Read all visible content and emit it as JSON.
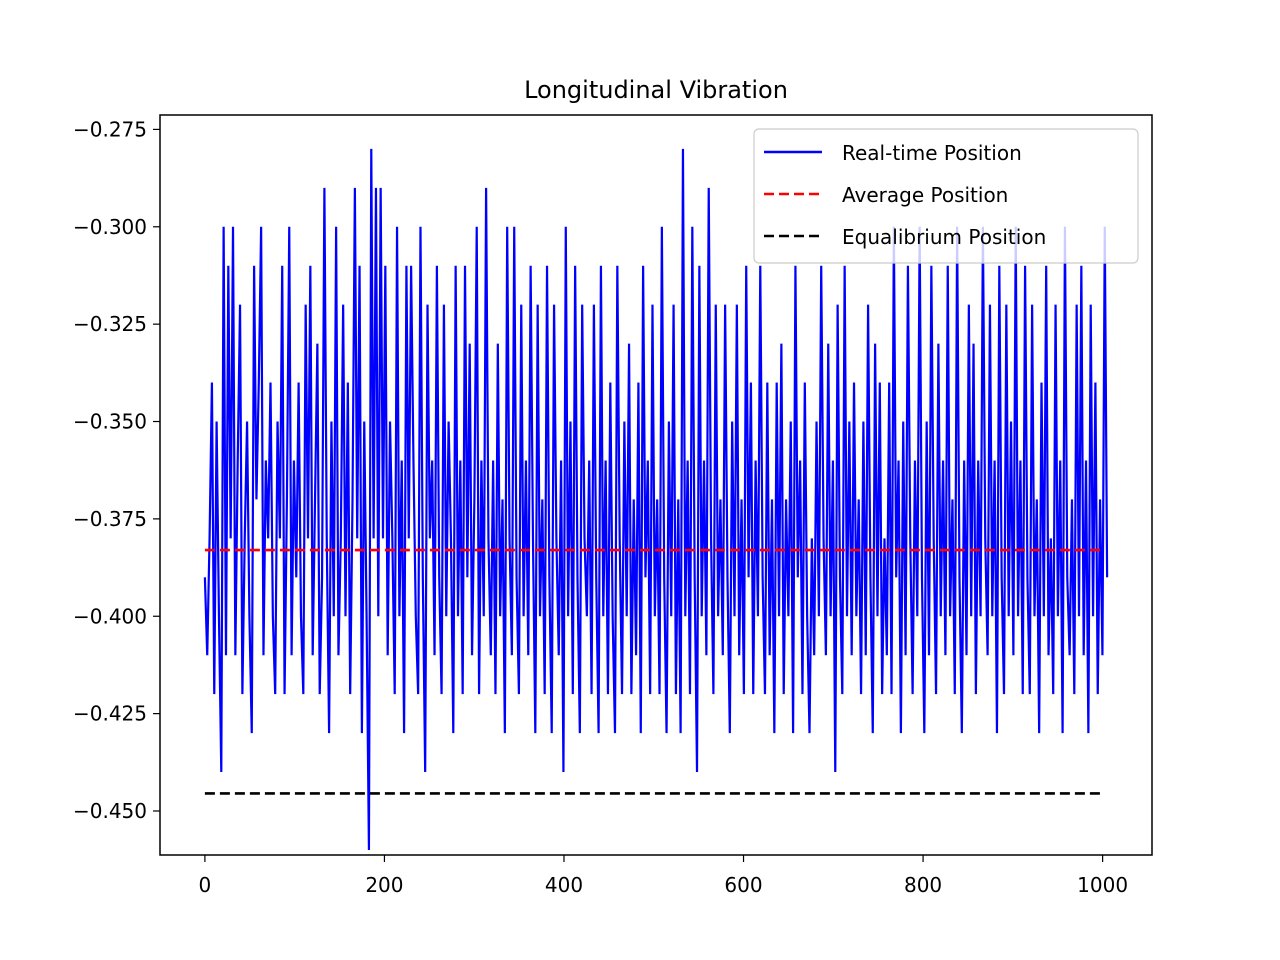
{
  "chart_data": {
    "type": "line",
    "title": "Longitudinal Vibration",
    "xlabel": "",
    "ylabel": "",
    "xlim": [
      -50,
      1055
    ],
    "ylim": [
      -0.4613,
      -0.2713
    ],
    "x_ticks": [
      0,
      200,
      400,
      600,
      800,
      1000
    ],
    "x_tick_labels": [
      "0",
      "200",
      "400",
      "600",
      "800",
      "1000"
    ],
    "y_ticks": [
      -0.275,
      -0.3,
      -0.325,
      -0.35,
      -0.375,
      -0.4,
      -0.425,
      -0.45
    ],
    "y_tick_labels": [
      "−0.275",
      "−0.300",
      "−0.325",
      "−0.350",
      "−0.375",
      "−0.400",
      "−0.425",
      "−0.450"
    ],
    "grid": false,
    "legend_position": "top-right",
    "series": [
      {
        "name": "Real-time Position",
        "style": "solid",
        "color": "#0000ff",
        "x_start": 0,
        "x_end": 1005,
        "values": [
          -0.39,
          -0.41,
          -0.38,
          -0.34,
          -0.42,
          -0.35,
          -0.4,
          -0.44,
          -0.3,
          -0.41,
          -0.31,
          -0.38,
          -0.3,
          -0.41,
          -0.36,
          -0.32,
          -0.42,
          -0.38,
          -0.35,
          -0.4,
          -0.43,
          -0.31,
          -0.37,
          -0.34,
          -0.3,
          -0.41,
          -0.36,
          -0.38,
          -0.34,
          -0.4,
          -0.42,
          -0.35,
          -0.38,
          -0.31,
          -0.42,
          -0.37,
          -0.3,
          -0.41,
          -0.36,
          -0.39,
          -0.34,
          -0.4,
          -0.42,
          -0.32,
          -0.38,
          -0.31,
          -0.41,
          -0.37,
          -0.33,
          -0.42,
          -0.39,
          -0.29,
          -0.38,
          -0.43,
          -0.35,
          -0.4,
          -0.3,
          -0.41,
          -0.38,
          -0.32,
          -0.4,
          -0.34,
          -0.42,
          -0.37,
          -0.29,
          -0.38,
          -0.31,
          -0.43,
          -0.35,
          -0.4,
          -0.46,
          -0.28,
          -0.38,
          -0.29,
          -0.4,
          -0.29,
          -0.38,
          -0.31,
          -0.41,
          -0.35,
          -0.38,
          -0.42,
          -0.3,
          -0.4,
          -0.36,
          -0.43,
          -0.31,
          -0.38,
          -0.31,
          -0.36,
          -0.4,
          -0.42,
          -0.3,
          -0.39,
          -0.44,
          -0.32,
          -0.38,
          -0.36,
          -0.41,
          -0.31,
          -0.39,
          -0.42,
          -0.32,
          -0.4,
          -0.35,
          -0.38,
          -0.43,
          -0.31,
          -0.4,
          -0.36,
          -0.42,
          -0.31,
          -0.39,
          -0.33,
          -0.41,
          -0.37,
          -0.3,
          -0.42,
          -0.36,
          -0.4,
          -0.29,
          -0.38,
          -0.41,
          -0.36,
          -0.42,
          -0.33,
          -0.4,
          -0.37,
          -0.43,
          -0.3,
          -0.38,
          -0.41,
          -0.3,
          -0.39,
          -0.42,
          -0.32,
          -0.4,
          -0.36,
          -0.41,
          -0.31,
          -0.38,
          -0.43,
          -0.32,
          -0.4,
          -0.37,
          -0.42,
          -0.31,
          -0.39,
          -0.43,
          -0.32,
          -0.38,
          -0.41,
          -0.36,
          -0.44,
          -0.3,
          -0.4,
          -0.35,
          -0.42,
          -0.31,
          -0.39,
          -0.43,
          -0.32,
          -0.38,
          -0.4,
          -0.36,
          -0.42,
          -0.32,
          -0.39,
          -0.43,
          -0.31,
          -0.4,
          -0.36,
          -0.42,
          -0.34,
          -0.4,
          -0.43,
          -0.31,
          -0.38,
          -0.42,
          -0.35,
          -0.4,
          -0.33,
          -0.42,
          -0.37,
          -0.41,
          -0.34,
          -0.43,
          -0.31,
          -0.39,
          -0.36,
          -0.42,
          -0.32,
          -0.4,
          -0.37,
          -0.42,
          -0.3,
          -0.39,
          -0.43,
          -0.35,
          -0.4,
          -0.32,
          -0.42,
          -0.37,
          -0.43,
          -0.28,
          -0.4,
          -0.36,
          -0.42,
          -0.3,
          -0.39,
          -0.44,
          -0.31,
          -0.4,
          -0.36,
          -0.41,
          -0.29,
          -0.38,
          -0.42,
          -0.32,
          -0.4,
          -0.37,
          -0.41,
          -0.32,
          -0.39,
          -0.43,
          -0.35,
          -0.4,
          -0.32,
          -0.41,
          -0.37,
          -0.42,
          -0.31,
          -0.39,
          -0.34,
          -0.42,
          -0.36,
          -0.4,
          -0.31,
          -0.39,
          -0.42,
          -0.34,
          -0.41,
          -0.37,
          -0.43,
          -0.34,
          -0.4,
          -0.33,
          -0.42,
          -0.37,
          -0.4,
          -0.35,
          -0.43,
          -0.31,
          -0.39,
          -0.36,
          -0.42,
          -0.34,
          -0.4,
          -0.43,
          -0.38,
          -0.41,
          -0.35,
          -0.4,
          -0.31,
          -0.38,
          -0.41,
          -0.33,
          -0.4,
          -0.36,
          -0.44,
          -0.32,
          -0.39,
          -0.42,
          -0.31,
          -0.4,
          -0.35,
          -0.41,
          -0.34,
          -0.4,
          -0.37,
          -0.42,
          -0.35,
          -0.41,
          -0.32,
          -0.39,
          -0.43,
          -0.33,
          -0.4,
          -0.34,
          -0.42,
          -0.38,
          -0.41,
          -0.34,
          -0.42,
          -0.3,
          -0.39,
          -0.36,
          -0.43,
          -0.35,
          -0.41,
          -0.31,
          -0.38,
          -0.42,
          -0.36,
          -0.4,
          -0.3,
          -0.39,
          -0.43,
          -0.35,
          -0.41,
          -0.31,
          -0.38,
          -0.42,
          -0.33,
          -0.4,
          -0.36,
          -0.41,
          -0.31,
          -0.4,
          -0.37,
          -0.42,
          -0.3,
          -0.39,
          -0.43,
          -0.36,
          -0.41,
          -0.32,
          -0.4,
          -0.33,
          -0.42,
          -0.36,
          -0.4,
          -0.3,
          -0.38,
          -0.41,
          -0.32,
          -0.4,
          -0.36,
          -0.43,
          -0.31,
          -0.39,
          -0.42,
          -0.32,
          -0.4,
          -0.35,
          -0.41,
          -0.3,
          -0.4,
          -0.36,
          -0.42,
          -0.31,
          -0.39,
          -0.42,
          -0.32,
          -0.4,
          -0.37,
          -0.43,
          -0.34,
          -0.4,
          -0.31,
          -0.41,
          -0.38,
          -0.42,
          -0.32,
          -0.4,
          -0.36,
          -0.43,
          -0.3,
          -0.39,
          -0.41,
          -0.37,
          -0.42,
          -0.32,
          -0.4,
          -0.31,
          -0.41,
          -0.36,
          -0.43,
          -0.32,
          -0.4,
          -0.34,
          -0.42,
          -0.37,
          -0.41,
          -0.3,
          -0.39
        ]
      },
      {
        "name": "Average Position",
        "style": "dashed",
        "color": "#ff0000",
        "x": [
          0,
          1000
        ],
        "values": [
          -0.383,
          -0.383
        ]
      },
      {
        "name": "Equalibrium Position",
        "style": "dashed",
        "color": "#000000",
        "x": [
          0,
          1000
        ],
        "values": [
          -0.4455,
          -0.4455
        ]
      }
    ]
  }
}
